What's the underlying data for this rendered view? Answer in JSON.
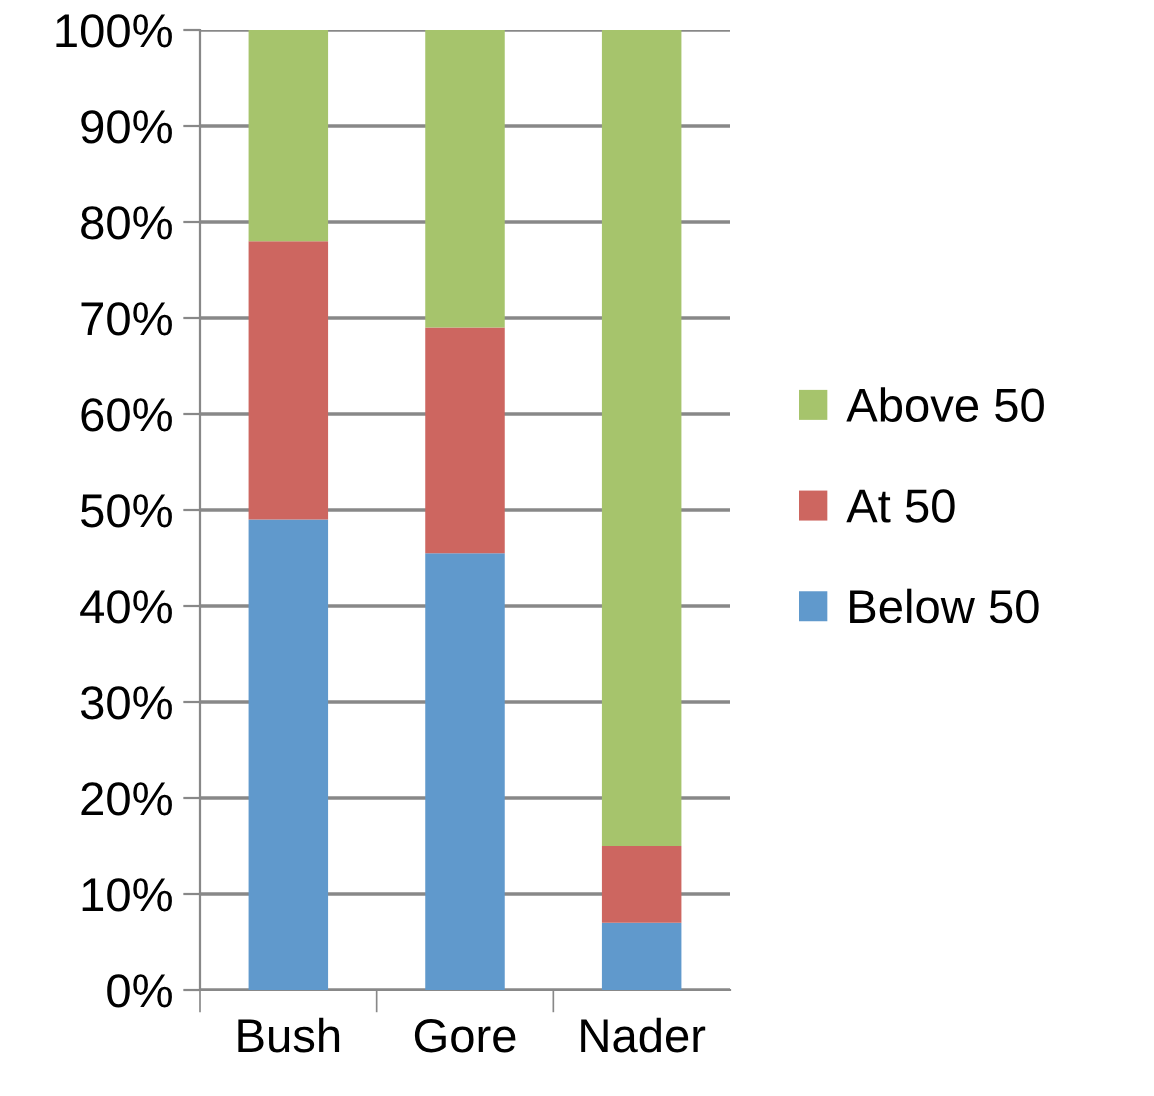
{
  "chart_data": {
    "type": "bar",
    "stacked": true,
    "categories": [
      "Bush",
      "Gore",
      "Nader"
    ],
    "series": [
      {
        "name": "Below 50",
        "color": "#6099cc",
        "values": [
          49,
          45.5,
          7
        ]
      },
      {
        "name": "At 50",
        "color": "#cd6660",
        "values": [
          29,
          23.5,
          8
        ]
      },
      {
        "name": "Above 50",
        "color": "#a6c46c",
        "values": [
          22,
          31,
          85
        ]
      }
    ],
    "ylim": [
      0,
      100
    ],
    "yticks": [
      {
        "value": 0,
        "label": "0%"
      },
      {
        "value": 10,
        "label": "10%"
      },
      {
        "value": 20,
        "label": "20%"
      },
      {
        "value": 30,
        "label": "30%"
      },
      {
        "value": 40,
        "label": "40%"
      },
      {
        "value": 50,
        "label": "50%"
      },
      {
        "value": 60,
        "label": "60%"
      },
      {
        "value": 70,
        "label": "70%"
      },
      {
        "value": 80,
        "label": "80%"
      },
      {
        "value": 90,
        "label": "90%"
      },
      {
        "value": 100,
        "label": "100%"
      }
    ],
    "grid": "y",
    "legend": "right"
  }
}
